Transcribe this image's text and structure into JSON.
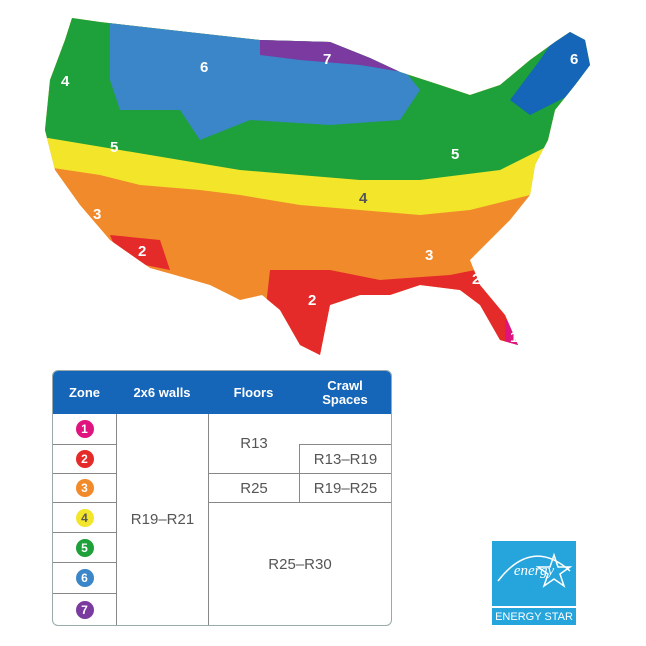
{
  "map": {
    "zone_labels": [
      "6",
      "7",
      "6",
      "4",
      "5",
      "5",
      "4",
      "3",
      "3",
      "2",
      "2",
      "2",
      "1"
    ],
    "colors": {
      "1": "#e0147f",
      "2": "#e52a2a",
      "3": "#f08a2a",
      "4": "#f2e52a",
      "5": "#1ea03a",
      "6": "#3a86c8",
      "7": "#7a3aa0"
    }
  },
  "table": {
    "headers": [
      "Zone",
      "2x6 walls",
      "Floors",
      "Crawl Spaces"
    ],
    "zones": [
      "1",
      "2",
      "3",
      "4",
      "5",
      "6",
      "7"
    ],
    "walls": "R19–R21",
    "floors_z1_2": "R13",
    "crawl_z2": "R13–R19",
    "floors_z3": "R25",
    "crawl_z3": "R19–R25",
    "floors_crawl_z4_7": "R25–R30"
  },
  "logo": {
    "script": "energy",
    "label": "ENERGY STAR"
  }
}
